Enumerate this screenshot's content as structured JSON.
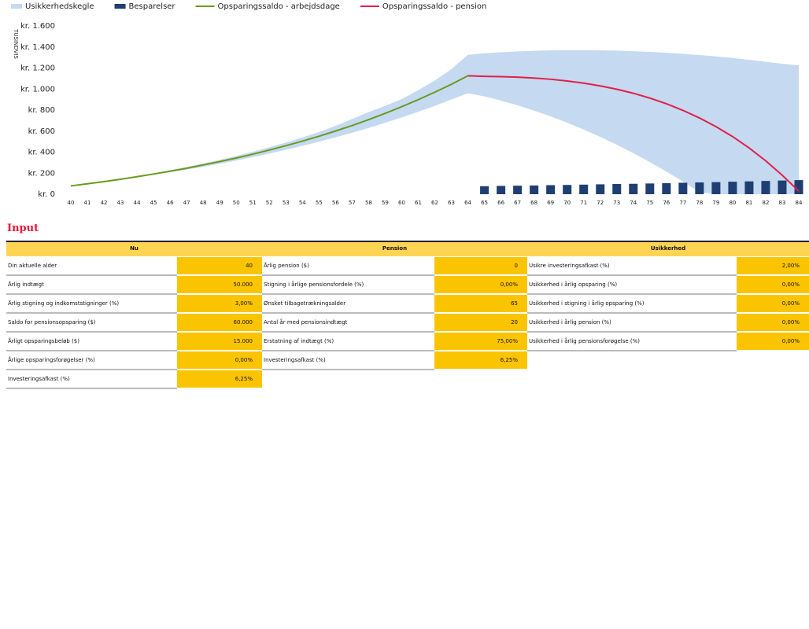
{
  "chart_data": {
    "type": "line",
    "y_axis_label": "TUSINDVIS",
    "categories": [
      40,
      41,
      42,
      43,
      44,
      45,
      46,
      47,
      48,
      49,
      50,
      51,
      52,
      53,
      54,
      55,
      56,
      57,
      58,
      59,
      60,
      61,
      62,
      63,
      64,
      65,
      66,
      67,
      68,
      69,
      70,
      71,
      72,
      73,
      74,
      75,
      76,
      77,
      78,
      79,
      80,
      81,
      82,
      83,
      84
    ],
    "ylim": [
      0,
      1600
    ],
    "yticks": [
      {
        "value": 0,
        "label": "kr. 0"
      },
      {
        "value": 200,
        "label": "kr. 200"
      },
      {
        "value": 400,
        "label": "kr. 400"
      },
      {
        "value": 600,
        "label": "kr. 600"
      },
      {
        "value": 800,
        "label": "kr. 800"
      },
      {
        "value": 1000,
        "label": "kr. 1.000"
      },
      {
        "value": 1200,
        "label": "kr. 1.200"
      },
      {
        "value": 1400,
        "label": "kr. 1.400"
      },
      {
        "value": 1600,
        "label": "kr. 1.600"
      }
    ],
    "series": [
      {
        "name": "Usikkerhedskegle",
        "type": "band",
        "color": "#c5d9f1",
        "low": [
          79,
          98,
          117,
          138,
          161,
          185,
          209,
          235,
          261,
          290,
          321,
          353,
          387,
          422,
          460,
          499,
          541,
          584,
          630,
          679,
          730,
          784,
          840,
          900,
          960,
          930,
          890,
          845,
          795,
          740,
          680,
          615,
          545,
          470,
          390,
          305,
          215,
          120,
          20,
          0,
          0,
          0,
          0,
          0,
          0
        ],
        "high": [
          79,
          100,
          123,
          147,
          172,
          199,
          228,
          259,
          292,
          327,
          364,
          404,
          447,
          492,
          540,
          591,
          650,
          715,
          780,
          840,
          905,
          990,
          1080,
          1190,
          1325,
          1340,
          1350,
          1358,
          1364,
          1368,
          1370,
          1370,
          1368,
          1365,
          1360,
          1353,
          1345,
          1335,
          1323,
          1310,
          1295,
          1278,
          1260,
          1240,
          1225
        ]
      },
      {
        "name": "Besparelser",
        "type": "bar",
        "color": "#1f3f73",
        "values": [
          null,
          null,
          null,
          null,
          null,
          null,
          null,
          null,
          null,
          null,
          null,
          null,
          null,
          null,
          null,
          null,
          null,
          null,
          null,
          null,
          null,
          null,
          null,
          null,
          null,
          76,
          79,
          81,
          83,
          86,
          88,
          91,
          94,
          97,
          99,
          102,
          105,
          109,
          112,
          115,
          119,
          122,
          126,
          130,
          134
        ]
      },
      {
        "name": "Opsparingssaldo - arbejdsdage",
        "type": "line",
        "color": "#6a9a1f",
        "values": [
          79,
          99,
          120,
          142,
          166,
          192,
          219,
          247,
          278,
          310,
          344,
          381,
          420,
          461,
          505,
          551,
          601,
          653,
          709,
          769,
          832,
          899,
          970,
          1045,
          1126,
          null,
          null,
          null,
          null,
          null,
          null,
          null,
          null,
          null,
          null,
          null,
          null,
          null,
          null,
          null,
          null,
          null,
          null,
          null,
          null
        ]
      },
      {
        "name": "Opsparingssaldo - pension",
        "type": "line",
        "color": "#e0204a",
        "values": [
          null,
          null,
          null,
          null,
          null,
          null,
          null,
          null,
          null,
          null,
          null,
          null,
          null,
          null,
          null,
          null,
          null,
          null,
          null,
          null,
          null,
          null,
          null,
          null,
          1126,
          1121,
          1118,
          1113,
          1105,
          1093,
          1077,
          1056,
          1030,
          998,
          960,
          914,
          860,
          797,
          725,
          642,
          548,
          440,
          318,
          180,
          30
        ]
      }
    ]
  },
  "input": {
    "title": "Input",
    "sections": [
      {
        "title": "Nu",
        "rows": [
          [
            "Din aktuelle alder",
            "40"
          ],
          [
            "Årlig indtægt",
            "50.000"
          ],
          [
            "Årlig stigning og indkomststigninger (%)",
            "3,00%"
          ],
          [
            "Saldo for pensionsopsparing ($)",
            "60.000"
          ],
          [
            "Årligt opsparingsbeløb ($)",
            "15.000"
          ],
          [
            "Årlige opsparingsforøgelser (%)",
            "0,00%"
          ],
          [
            "Investeringsafkast (%)",
            "6,25%"
          ]
        ]
      },
      {
        "title": "Pension",
        "rows": [
          [
            "Årlig pension ($)",
            "0"
          ],
          [
            "Stigning i årlige pensionsfordele (%)",
            "0,00%"
          ],
          [
            "Ønsket tilbagetrækningsalder",
            "65"
          ],
          [
            "Antal år med pensionsindtægt",
            "20"
          ],
          [
            "Erstatning af indtægt (%)",
            "75,00%"
          ],
          [
            "Investeringsafkast (%)",
            "6,25%"
          ]
        ]
      },
      {
        "title": "Usikkerhed",
        "rows": [
          [
            "Usikre investeringsafkast (%)",
            "2,00%"
          ],
          [
            "Usikkerhed i årlig opsparing (%)",
            "0,00%"
          ],
          [
            "Usikkerhed i stigning i årlig opsparing (%)",
            "0,00%"
          ],
          [
            "Usikkerhed i årlig pension (%)",
            "0,00%"
          ],
          [
            "Usikkerhed i årlig pensionsforøgelse (%)",
            "0,00%"
          ]
        ]
      }
    ]
  }
}
